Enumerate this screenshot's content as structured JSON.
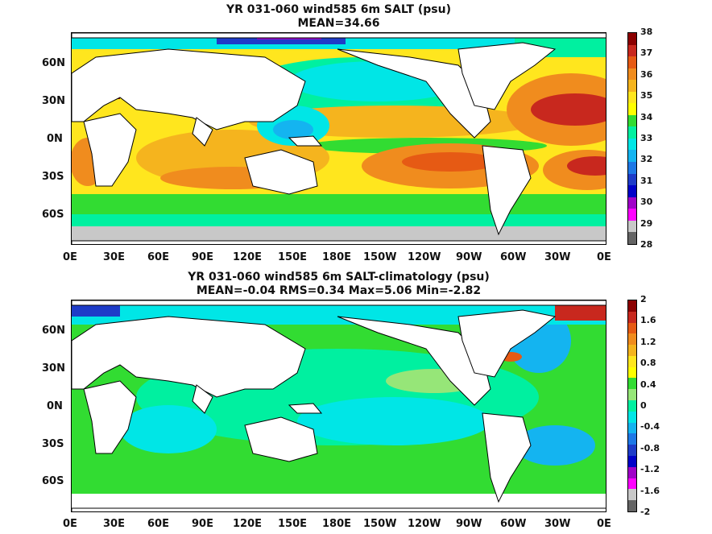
{
  "panel1": {
    "title_line1": "YR 031-060 wind585 6m SALT (psu)",
    "title_line2": "MEAN=34.66",
    "colorbar_labels": [
      "38",
      "37",
      "36",
      "35",
      "34",
      "33",
      "32",
      "31",
      "30",
      "29",
      "28"
    ],
    "colorbar_colors": [
      "#8b0000",
      "#c8281e",
      "#e65a14",
      "#f08c1e",
      "#f5b41e",
      "#ffe61e",
      "#ffff00",
      "#32dc32",
      "#00f0a0",
      "#00e6e6",
      "#14b4f0",
      "#1e78e6",
      "#1e3cc8",
      "#0000c8",
      "#a000c8",
      "#ff00ff",
      "#c8c8c8",
      "#646464"
    ]
  },
  "panel2": {
    "title_line1": "YR 031-060 wind585 6m SALT-climatology (psu)",
    "title_line2": "MEAN=-0.04   RMS=0.34   Max=5.06   Min=-2.82",
    "colorbar_labels": [
      "2",
      "1.6",
      "1.2",
      "0.8",
      "0.4",
      "0",
      "-0.4",
      "-0.8",
      "-1.2",
      "-1.6",
      "-2"
    ],
    "colorbar_colors": [
      "#8b0000",
      "#c8281e",
      "#e65a14",
      "#f08c1e",
      "#f5b41e",
      "#ffe61e",
      "#ffff00",
      "#32dc32",
      "#96e678",
      "#00f0a0",
      "#00e6e6",
      "#14b4f0",
      "#1e78e6",
      "#1e3cc8",
      "#0000c8",
      "#a000c8",
      "#ff00ff",
      "#c8c8c8",
      "#646464"
    ]
  },
  "axes": {
    "x_ticks": [
      "0E",
      "30E",
      "60E",
      "90E",
      "120E",
      "150E",
      "180E",
      "150W",
      "120W",
      "90W",
      "60W",
      "30W",
      "0E"
    ],
    "y_ticks": [
      "60N",
      "30N",
      "0N",
      "30S",
      "60S"
    ]
  },
  "colors": {
    "land": "#ffffff",
    "coast": "#000000"
  }
}
